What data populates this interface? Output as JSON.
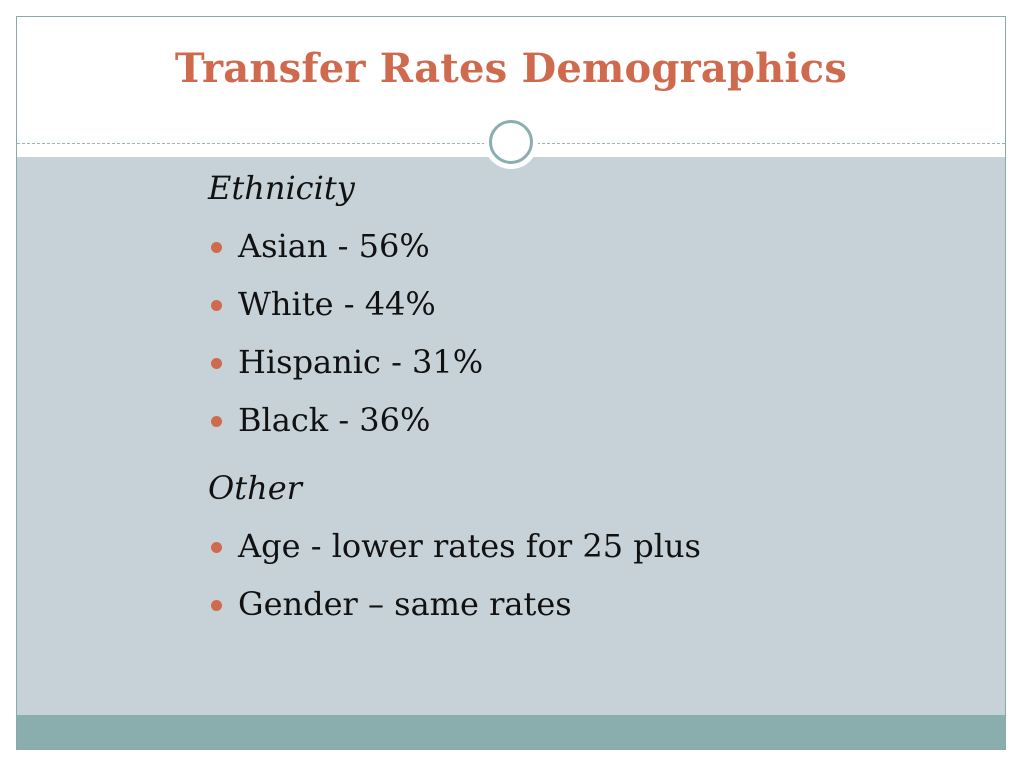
{
  "slide": {
    "title": "Transfer Rates Demographics",
    "sections": [
      {
        "heading": "Ethnicity",
        "items": [
          "Asian  - 56%",
          "White - 44%",
          "Hispanic - 31%",
          "Black - 36%"
        ]
      },
      {
        "heading": "Other",
        "items": [
          "Age - lower rates for 25 plus",
          "Gender – same rates"
        ]
      }
    ]
  },
  "colors": {
    "title": "#cf6a4e",
    "bullet": "#cf6a4e",
    "content_background": "#c6d2d8",
    "footer_band": "#8aaeae",
    "frame": "#8aa9aa"
  },
  "icons": {
    "ornament": "circle-ring-icon",
    "bullet": "dot-bullet-icon"
  }
}
